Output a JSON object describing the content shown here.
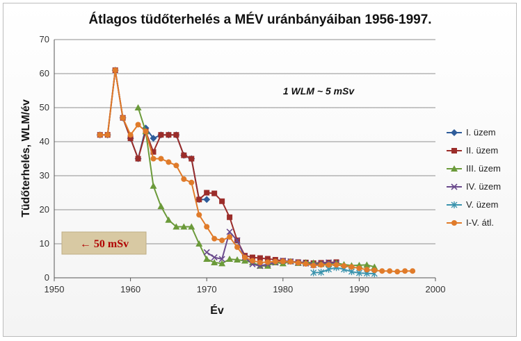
{
  "chart_data": {
    "type": "line",
    "title": "Átlagos tüdőterhelés a MÉV uránbányáiban 1956-1997.",
    "xlabel": "Év",
    "ylabel": "Tüdőterhelés, WLM/év",
    "xlim": [
      1950,
      2000
    ],
    "ylim": [
      0,
      70
    ],
    "xticks": [
      1950,
      1960,
      1970,
      1980,
      1990,
      2000
    ],
    "yticks": [
      0,
      10,
      20,
      30,
      40,
      50,
      60,
      70
    ],
    "grid": true,
    "legend_position": "right",
    "annotation": "1 WLM ~ 5 mSv",
    "callout": {
      "label": "← 50 mSv",
      "value": 10
    },
    "series": [
      {
        "name": "I. üzem",
        "color": "#2e5c9a",
        "marker": "diamond",
        "x": [
          1956,
          1957,
          1958,
          1959,
          1960,
          1961,
          1962,
          1963,
          1964,
          1965,
          1966,
          1967,
          1968,
          1969,
          1970
        ],
        "y": [
          42,
          42,
          61,
          47,
          41,
          35,
          44,
          41,
          42,
          42,
          42,
          36,
          35,
          23,
          23
        ]
      },
      {
        "name": "II. üzem",
        "color": "#9b2d2a",
        "marker": "square",
        "x": [
          1956,
          1957,
          1958,
          1959,
          1960,
          1961,
          1962,
          1963,
          1964,
          1965,
          1966,
          1967,
          1968,
          1969,
          1970,
          1971,
          1972,
          1973,
          1974,
          1975,
          1976,
          1977,
          1978,
          1979,
          1980,
          1981,
          1982,
          1983,
          1984,
          1985,
          1986,
          1987
        ],
        "y": [
          42,
          42,
          61,
          47,
          41,
          35,
          43,
          37,
          42,
          42,
          42,
          36,
          35,
          23,
          25,
          24.8,
          22.5,
          17.8,
          11,
          6.5,
          6,
          5.8,
          5.6,
          5.3,
          5,
          4.8,
          4.6,
          4.5,
          4.3,
          4.4,
          4.5,
          4.6
        ]
      },
      {
        "name": "III. üzem",
        "color": "#6b9a3a",
        "marker": "triangle",
        "x": [
          1961,
          1962,
          1963,
          1964,
          1965,
          1966,
          1967,
          1968,
          1969,
          1970,
          1971,
          1972,
          1973,
          1974,
          1975,
          1976,
          1977,
          1978,
          1979,
          1980,
          1981,
          1982,
          1983,
          1984,
          1985,
          1986,
          1987,
          1988,
          1989,
          1990,
          1991,
          1992
        ],
        "y": [
          50,
          43,
          27,
          21,
          17,
          15,
          15,
          15,
          10,
          5.5,
          4.5,
          4.2,
          5.5,
          5.3,
          5,
          4.5,
          3.5,
          3.5,
          4.5,
          4.2,
          4.8,
          4.3,
          4.5,
          4.4,
          4,
          4.1,
          4.3,
          3.9,
          3.6,
          3.7,
          3.8,
          3.2
        ]
      },
      {
        "name": "IV. üzem",
        "color": "#6a4a8c",
        "marker": "x",
        "x": [
          1970,
          1971,
          1972,
          1973,
          1974,
          1975,
          1976,
          1977,
          1978,
          1979,
          1980,
          1981,
          1982,
          1983,
          1984,
          1985,
          1986,
          1987
        ],
        "y": [
          7.5,
          6,
          5.5,
          13.5,
          11,
          6,
          4,
          3.5,
          4,
          4.5,
          5,
          4.8,
          4.5,
          4.2,
          3.8,
          4.2,
          4.5,
          4.3
        ]
      },
      {
        "name": "V. üzem",
        "color": "#3a93ad",
        "marker": "star",
        "x": [
          1984,
          1985,
          1986,
          1987,
          1988,
          1989,
          1990,
          1991,
          1992
        ],
        "y": [
          1.5,
          1.6,
          2.5,
          3,
          2.5,
          1.8,
          1.4,
          1.3,
          1.2
        ]
      },
      {
        "name": "I-V. átl.",
        "color": "#e07b2a",
        "marker": "circle",
        "x": [
          1956,
          1957,
          1958,
          1959,
          1960,
          1961,
          1962,
          1963,
          1964,
          1965,
          1966,
          1967,
          1968,
          1969,
          1970,
          1971,
          1972,
          1973,
          1974,
          1975,
          1976,
          1977,
          1978,
          1979,
          1980,
          1981,
          1982,
          1983,
          1984,
          1985,
          1986,
          1987,
          1988,
          1989,
          1990,
          1991,
          1992,
          1993,
          1994,
          1995,
          1996,
          1997
        ],
        "y": [
          42,
          42,
          61,
          47,
          42,
          45,
          43,
          35,
          35,
          34,
          33,
          29,
          28,
          18.5,
          15,
          11.5,
          11,
          12,
          9,
          6,
          5,
          4.5,
          4.6,
          4.8,
          4.8,
          4.7,
          4.4,
          4.1,
          3.6,
          3.8,
          3.8,
          3.8,
          3.5,
          3.2,
          2.8,
          2.4,
          2.2,
          2,
          2,
          1.8,
          2,
          2
        ]
      }
    ]
  }
}
